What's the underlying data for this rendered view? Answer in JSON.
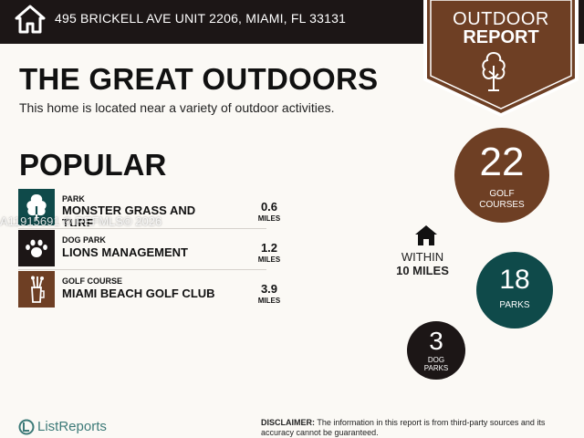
{
  "header": {
    "address": "495 BRICKELL AVE UNIT 2206, MIAMI, FL 33131",
    "badge_line1": "OUTDOOR",
    "badge_line2": "REPORT"
  },
  "main": {
    "title": "THE GREAT OUTDOORS",
    "subtitle": "This home is located near a variety of outdoor activities.",
    "popular_heading": "POPULAR"
  },
  "popular": [
    {
      "category": "PARK",
      "name": "MONSTER GRASS AND TURF",
      "distance": "0.6",
      "unit": "MILES"
    },
    {
      "category": "DOG PARK",
      "name": "LIONS MANAGEMENT",
      "distance": "1.2",
      "unit": "MILES"
    },
    {
      "category": "GOLF COURSE",
      "name": "MIAMI BEACH GOLF CLUB",
      "distance": "3.9",
      "unit": "MILES"
    }
  ],
  "stats": {
    "golf": {
      "count": "22",
      "label_1": "GOLF",
      "label_2": "COURSES"
    },
    "parks": {
      "count": "18",
      "label": "PARKS"
    },
    "dog": {
      "count": "3",
      "label_1": "DOG",
      "label_2": "PARKS"
    },
    "within_1": "WITHIN",
    "within_2": "10 MILES"
  },
  "watermark": "A11915691 © REFMLS© 2026",
  "footer": {
    "brand": "ListReports",
    "disclaimer_label": "DISCLAIMER:",
    "disclaimer_text": " The information in this report is from third-party sources and its accuracy cannot be guaranteed."
  },
  "colors": {
    "header_bg": "#1c1616",
    "brown": "#6e3f24",
    "teal": "#0f4a4a",
    "brand": "#3d7a78"
  },
  "icons": {
    "header": "house-icon",
    "badge": "tree-icon",
    "park": "park-tree-icon",
    "dog": "paw-icon",
    "golf": "golf-bag-icon",
    "within": "house-icon"
  }
}
